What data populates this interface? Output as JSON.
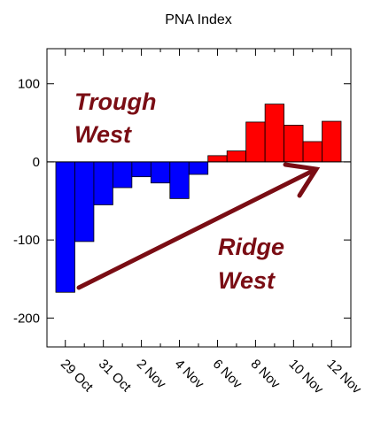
{
  "chart_data": {
    "type": "bar",
    "title": "PNA Index",
    "categories": [
      "29 Oct",
      null,
      "31 Oct",
      null,
      "2 Nov",
      null,
      "4 Nov",
      null,
      "6 Nov",
      null,
      "8 Nov",
      null,
      "10 Nov",
      null,
      "12 Nov"
    ],
    "values": [
      -167,
      -102,
      -55,
      -33,
      -19,
      -27,
      -47,
      -16,
      8,
      14,
      51,
      74,
      47,
      26,
      52
    ],
    "positive_color": "#ff0000",
    "negative_color": "#0000ff",
    "ylim": [
      -237,
      145
    ],
    "yticks": [
      -200,
      -100,
      0,
      100
    ],
    "annotations": [
      [
        "Trough",
        "West"
      ],
      [
        "Ridge",
        "West"
      ]
    ]
  }
}
